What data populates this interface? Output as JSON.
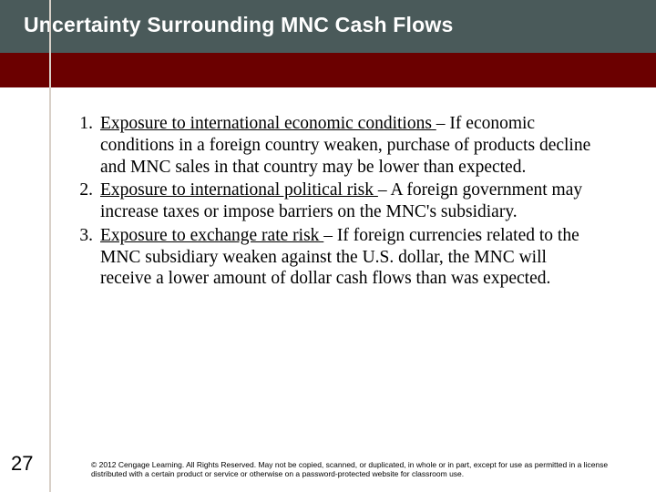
{
  "title": "Uncertainty Surrounding MNC Cash Flows",
  "items": [
    {
      "num": "1.",
      "lead": "Exposure to international economic conditions ",
      "rest": "– If economic conditions in a foreign country weaken, purchase of products decline and MNC sales in that country may be lower than expected."
    },
    {
      "num": "2.",
      "lead": "Exposure to international political risk ",
      "rest": "– A foreign government may increase taxes or impose barriers on the MNC's subsidiary."
    },
    {
      "num": "3.",
      "lead": "Exposure to exchange rate risk ",
      "rest": "– If foreign currencies related to the MNC subsidiary weaken against the U.S. dollar, the MNC will receive a lower amount of dollar cash flows than was expected."
    }
  ],
  "page_number": "27",
  "footer": "© 2012 Cengage Learning. All Rights Reserved. May not be copied, scanned, or duplicated, in whole or in part, except for use as permitted in a license distributed with a certain product or service or otherwise on a password-protected website for classroom use.",
  "colors": {
    "title_band": "#4a5a5a",
    "red_band": "#6b0000",
    "vbar": "#d8d0c8",
    "text": "#000000",
    "title_text": "#ffffff"
  }
}
